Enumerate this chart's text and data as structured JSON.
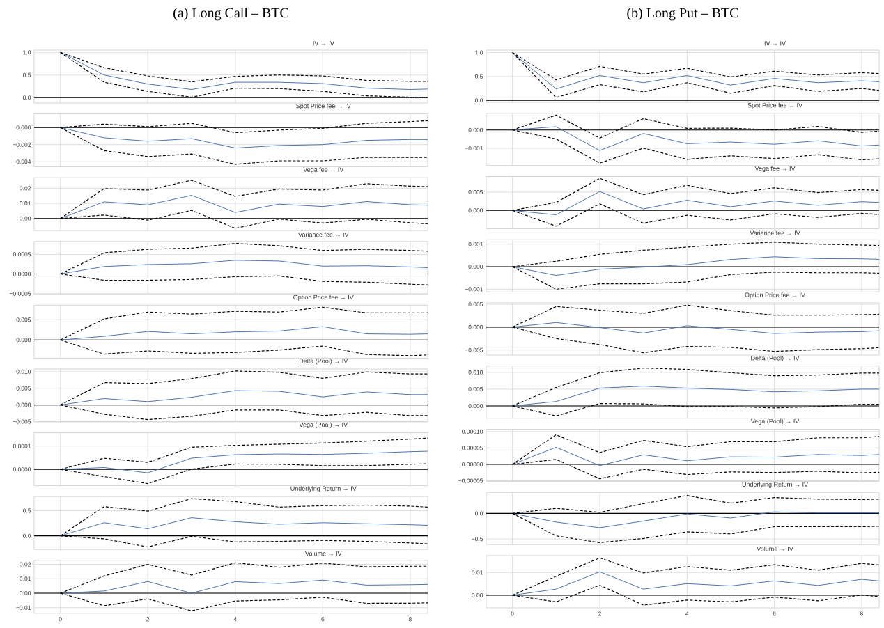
{
  "chart_data": [
    {
      "type": "line",
      "title": "IV → IV",
      "annotations": [
        "(a) Long Call – BTC"
      ],
      "x": [
        0,
        1,
        2,
        3,
        4,
        5,
        6,
        7,
        8,
        8.4
      ],
      "xlim": [
        -0.6,
        8.4
      ],
      "xticks": [
        0,
        2,
        4,
        6,
        8
      ],
      "ylim": [
        -0.12,
        1.05
      ],
      "yticks": [
        {
          "value": 0,
          "label": "0.0"
        },
        {
          "value": 0.5,
          "label": "0.5"
        },
        {
          "value": 1,
          "label": "1.0"
        }
      ],
      "grid": true,
      "tick_labels": "y",
      "ref_lines": [
        {
          "axis": "y",
          "value": 0
        }
      ],
      "series": [
        {
          "color": "#4c72b0",
          "line_style": "solid",
          "values": [
            1.0,
            0.5,
            0.3,
            0.18,
            0.34,
            0.34,
            0.31,
            0.21,
            0.18,
            0.19
          ]
        },
        {
          "color": "#000000",
          "line_style": "dashed",
          "values": [
            1.0,
            0.34,
            0.14,
            0.01,
            0.21,
            0.2,
            0.14,
            0.04,
            0.01,
            0.01
          ]
        },
        {
          "color": "#000000",
          "line_style": "dashed",
          "values": [
            1.0,
            0.66,
            0.48,
            0.35,
            0.47,
            0.5,
            0.48,
            0.38,
            0.36,
            0.36
          ]
        }
      ]
    },
    {
      "type": "line",
      "title": "Spot Price fee → IV",
      "x": [
        0,
        1,
        2,
        3,
        4,
        5,
        6,
        7,
        8,
        8.4
      ],
      "xlim": [
        -0.6,
        8.4
      ],
      "xticks": [
        0,
        2,
        4,
        6,
        8
      ],
      "ylim": [
        -0.0046,
        0.0016
      ],
      "yticks": [
        {
          "value": -0.004,
          "label": "−0.004"
        },
        {
          "value": -0.002,
          "label": "−0.002"
        },
        {
          "value": 0,
          "label": "0.000"
        }
      ],
      "grid": true,
      "tick_labels": "y",
      "ref_lines": [
        {
          "axis": "y",
          "value": 0
        }
      ],
      "series": [
        {
          "color": "#4c72b0",
          "line_style": "solid",
          "values": [
            0,
            -0.0012,
            -0.0016,
            -0.0013,
            -0.0024,
            -0.0021,
            -0.002,
            -0.0015,
            -0.0014,
            -0.0014
          ]
        },
        {
          "color": "#000000",
          "line_style": "dashed",
          "values": [
            0,
            -0.0027,
            -0.0034,
            -0.0031,
            -0.0043,
            -0.0039,
            -0.0039,
            -0.0035,
            -0.0035,
            -0.0035
          ]
        },
        {
          "color": "#000000",
          "line_style": "dashed",
          "values": [
            0,
            0.0004,
            0.0001,
            0.0005,
            -0.0006,
            -0.0003,
            -0.0001,
            0.0005,
            0.0007,
            0.0008
          ]
        }
      ]
    },
    {
      "type": "line",
      "title": "Vega fee → IV",
      "x": [
        0,
        1,
        2,
        3,
        4,
        5,
        6,
        7,
        8,
        8.4
      ],
      "xlim": [
        -0.6,
        8.4
      ],
      "xticks": [
        0,
        2,
        4,
        6,
        8
      ],
      "ylim": [
        -0.008,
        0.027
      ],
      "yticks": [
        {
          "value": 0,
          "label": "0.00"
        },
        {
          "value": 0.01,
          "label": "0.01"
        },
        {
          "value": 0.02,
          "label": "0.02"
        }
      ],
      "grid": true,
      "tick_labels": "y",
      "ref_lines": [
        {
          "axis": "y",
          "value": 0
        }
      ],
      "series": [
        {
          "color": "#4c72b0",
          "line_style": "solid",
          "values": [
            0,
            0.011,
            0.009,
            0.0153,
            0.004,
            0.0095,
            0.0079,
            0.0112,
            0.0091,
            0.0088
          ]
        },
        {
          "color": "#000000",
          "line_style": "dashed",
          "values": [
            0,
            0.0023,
            -0.0011,
            0.0054,
            -0.0065,
            -0.0004,
            -0.003,
            -0.0005,
            -0.0028,
            -0.0035
          ]
        },
        {
          "color": "#000000",
          "line_style": "dashed",
          "values": [
            0,
            0.0198,
            0.0188,
            0.0253,
            0.0146,
            0.0195,
            0.0188,
            0.023,
            0.0214,
            0.021
          ]
        }
      ]
    },
    {
      "type": "line",
      "title": "Variance fee → IV",
      "x": [
        0,
        1,
        2,
        3,
        4,
        5,
        6,
        7,
        8,
        8.4
      ],
      "xlim": [
        -0.6,
        8.4
      ],
      "xticks": [
        0,
        2,
        4,
        6,
        8
      ],
      "ylim": [
        -0.00052,
        0.00083
      ],
      "yticks": [
        {
          "value": -0.0005,
          "label": "−0.0005"
        },
        {
          "value": 0,
          "label": "0.0000"
        },
        {
          "value": 0.0005,
          "label": "0.0005"
        }
      ],
      "grid": true,
      "tick_labels": "y",
      "ref_lines": [
        {
          "axis": "y",
          "value": 0
        }
      ],
      "series": [
        {
          "color": "#4c72b0",
          "line_style": "solid",
          "values": [
            0,
            0.00019,
            0.00024,
            0.00026,
            0.00035,
            0.00033,
            0.0002,
            0.00021,
            0.00018,
            0.00016
          ]
        },
        {
          "color": "#000000",
          "line_style": "dashed",
          "values": [
            0,
            -0.00016,
            -0.00016,
            -0.00014,
            -7e-05,
            -5e-05,
            -0.00019,
            -0.00021,
            -0.00026,
            -0.00028
          ]
        },
        {
          "color": "#000000",
          "line_style": "dashed",
          "values": [
            0,
            0.00054,
            0.00063,
            0.00066,
            0.00078,
            0.00072,
            0.0006,
            0.00063,
            0.0006,
            0.00058
          ]
        }
      ]
    },
    {
      "type": "line",
      "title": "Option Price fee → IV",
      "x": [
        0,
        1,
        2,
        3,
        4,
        5,
        6,
        7,
        8,
        8.4
      ],
      "xlim": [
        -0.6,
        8.4
      ],
      "xticks": [
        0,
        2,
        4,
        6,
        8
      ],
      "ylim": [
        -0.0045,
        0.0086
      ],
      "yticks": [
        {
          "value": 0,
          "label": "0.000"
        },
        {
          "value": 0.005,
          "label": "0.005"
        }
      ],
      "grid": true,
      "tick_labels": "y",
      "ref_lines": [
        {
          "axis": "y",
          "value": 0
        }
      ],
      "series": [
        {
          "color": "#4c72b0",
          "line_style": "solid",
          "values": [
            0,
            0.0009,
            0.0021,
            0.0015,
            0.002,
            0.0022,
            0.0033,
            0.0015,
            0.0014,
            0.0015
          ]
        },
        {
          "color": "#000000",
          "line_style": "dashed",
          "values": [
            0,
            -0.0035,
            -0.0027,
            -0.0033,
            -0.0031,
            -0.0025,
            -0.0015,
            -0.0036,
            -0.0039,
            -0.0037
          ]
        },
        {
          "color": "#000000",
          "line_style": "dashed",
          "values": [
            0,
            0.0052,
            0.0069,
            0.0064,
            0.0071,
            0.0069,
            0.0081,
            0.0067,
            0.0067,
            0.0067
          ]
        }
      ]
    },
    {
      "type": "line",
      "title": "Delta (Pool) → IV",
      "x": [
        0,
        1,
        2,
        3,
        4,
        5,
        6,
        7,
        8,
        8.4
      ],
      "xlim": [
        -0.6,
        8.4
      ],
      "xticks": [
        0,
        2,
        4,
        6,
        8
      ],
      "ylim": [
        -0.0051,
        0.0108
      ],
      "yticks": [
        {
          "value": -0.005,
          "label": "−0.005"
        },
        {
          "value": 0,
          "label": "0.000"
        },
        {
          "value": 0.005,
          "label": "0.005"
        },
        {
          "value": 0.01,
          "label": "0.010"
        }
      ],
      "grid": true,
      "tick_labels": "y",
      "ref_lines": [
        {
          "axis": "y",
          "value": 0
        }
      ],
      "series": [
        {
          "color": "#4c72b0",
          "line_style": "solid",
          "values": [
            0,
            0.0019,
            0.001,
            0.0023,
            0.0043,
            0.0041,
            0.0024,
            0.0039,
            0.0031,
            0.0031
          ]
        },
        {
          "color": "#000000",
          "line_style": "dashed",
          "values": [
            0,
            -0.0028,
            -0.0044,
            -0.0034,
            -0.0015,
            -0.0015,
            -0.0032,
            -0.0022,
            -0.0032,
            -0.0032
          ]
        },
        {
          "color": "#000000",
          "line_style": "dashed",
          "values": [
            0,
            0.0067,
            0.0064,
            0.0079,
            0.0102,
            0.0098,
            0.008,
            0.0099,
            0.0093,
            0.0093
          ]
        }
      ]
    },
    {
      "type": "line",
      "title": "Vega (Pool) → IV",
      "x": [
        0,
        1,
        2,
        3,
        4,
        5,
        6,
        7,
        8,
        8.4
      ],
      "xlim": [
        -0.6,
        8.4
      ],
      "xticks": [
        0,
        2,
        4,
        6,
        8
      ],
      "ylim": [
        -7e-05,
        0.000157
      ],
      "yticks": [
        {
          "value": 0,
          "label": "0.0000"
        },
        {
          "value": 0.0001,
          "label": "0.0001"
        }
      ],
      "grid": true,
      "tick_labels": "y",
      "ref_lines": [
        {
          "axis": "y",
          "value": 0
        }
      ],
      "series": [
        {
          "color": "#4c72b0",
          "line_style": "solid",
          "values": [
            0,
            8e-06,
            -1.5e-05,
            4.8e-05,
            6.3e-05,
            6.6e-05,
            6.4e-05,
            6.9e-05,
            7.6e-05,
            7.8e-05
          ]
        },
        {
          "color": "#000000",
          "line_style": "dashed",
          "values": [
            0,
            -3.1e-05,
            -6.1e-05,
            1e-06,
            2.3e-05,
            2.2e-05,
            1.6e-05,
            1.6e-05,
            2.2e-05,
            2.4e-05
          ]
        },
        {
          "color": "#000000",
          "line_style": "dashed",
          "values": [
            0,
            4.8e-05,
            3e-05,
            9.5e-05,
            0.000103,
            0.000108,
            0.000113,
            0.000121,
            0.00013,
            0.000134
          ]
        }
      ]
    },
    {
      "type": "line",
      "title": "Underlying Return → IV",
      "x": [
        0,
        1,
        2,
        3,
        4,
        5,
        6,
        7,
        8,
        8.4
      ],
      "xlim": [
        -0.6,
        8.4
      ],
      "xticks": [
        0,
        2,
        4,
        6,
        8
      ],
      "ylim": [
        -0.27,
        0.78
      ],
      "yticks": [
        {
          "value": 0,
          "label": "0.0"
        },
        {
          "value": 0.5,
          "label": "0.5"
        }
      ],
      "grid": true,
      "tick_labels": "y",
      "ref_lines": [
        {
          "axis": "y",
          "value": 0
        }
      ],
      "series": [
        {
          "color": "#4c72b0",
          "line_style": "solid",
          "values": [
            0,
            0.26,
            0.14,
            0.36,
            0.28,
            0.23,
            0.26,
            0.24,
            0.22,
            0.21
          ]
        },
        {
          "color": "#000000",
          "line_style": "dashed",
          "values": [
            0,
            -0.06,
            -0.22,
            -0.01,
            -0.12,
            -0.11,
            -0.09,
            -0.11,
            -0.14,
            -0.16
          ]
        },
        {
          "color": "#000000",
          "line_style": "dashed",
          "values": [
            0,
            0.58,
            0.49,
            0.74,
            0.68,
            0.57,
            0.6,
            0.61,
            0.59,
            0.57
          ]
        }
      ]
    },
    {
      "type": "line",
      "title": "Volume → IV",
      "x": [
        0,
        1,
        2,
        3,
        4,
        5,
        6,
        7,
        8,
        8.4
      ],
      "xlim": [
        -0.6,
        8.4
      ],
      "xticks": [
        0,
        2,
        4,
        6,
        8
      ],
      "ylim": [
        -0.0139,
        0.0228
      ],
      "yticks": [
        {
          "value": -0.01,
          "label": "−0.01"
        },
        {
          "value": 0,
          "label": "0.00"
        },
        {
          "value": 0.01,
          "label": "0.01"
        },
        {
          "value": 0.02,
          "label": "0.02"
        }
      ],
      "grid": true,
      "ref_lines": [
        {
          "axis": "y",
          "value": 0
        }
      ],
      "series": [
        {
          "color": "#4c72b0",
          "line_style": "solid",
          "values": [
            0,
            0.0015,
            0.0081,
            0.0,
            0.008,
            0.0067,
            0.0091,
            0.0056,
            0.0059,
            0.0061
          ]
        },
        {
          "color": "#000000",
          "line_style": "dashed",
          "values": [
            0,
            -0.0087,
            -0.0039,
            -0.0122,
            -0.0054,
            -0.0046,
            -0.0028,
            -0.007,
            -0.0069,
            -0.0067
          ]
        },
        {
          "color": "#000000",
          "line_style": "dashed",
          "values": [
            0,
            0.012,
            0.02,
            0.0126,
            0.0211,
            0.018,
            0.0209,
            0.0183,
            0.0187,
            0.0187
          ]
        }
      ]
    },
    {
      "type": "line",
      "title": "IV → IV",
      "annotations": [
        "(b) Long Put – BTC"
      ],
      "x": [
        0,
        1,
        2,
        3,
        4,
        5,
        6,
        7,
        8,
        8.4
      ],
      "xlim": [
        -0.6,
        8.4
      ],
      "xticks": [
        0,
        2,
        4,
        6,
        8
      ],
      "ylim": [
        -0.04,
        1.05
      ],
      "yticks": [
        {
          "value": 0,
          "label": "0.0"
        },
        {
          "value": 0.5,
          "label": "0.5"
        },
        {
          "value": 1,
          "label": "1.0"
        }
      ],
      "grid": true,
      "tick_labels": "y",
      "ref_lines": [
        {
          "axis": "y",
          "value": 0
        }
      ],
      "series": [
        {
          "color": "#4c72b0",
          "line_style": "solid",
          "values": [
            1.0,
            0.24,
            0.52,
            0.37,
            0.52,
            0.32,
            0.46,
            0.37,
            0.41,
            0.39
          ]
        },
        {
          "color": "#000000",
          "line_style": "dashed",
          "values": [
            1.0,
            0.06,
            0.33,
            0.18,
            0.37,
            0.15,
            0.31,
            0.19,
            0.25,
            0.21
          ]
        },
        {
          "color": "#000000",
          "line_style": "dashed",
          "values": [
            1.0,
            0.43,
            0.71,
            0.55,
            0.67,
            0.49,
            0.61,
            0.53,
            0.58,
            0.56
          ]
        }
      ]
    },
    {
      "type": "line",
      "title": "Spot Price fee → IV",
      "x": [
        0,
        1,
        2,
        3,
        4,
        5,
        6,
        7,
        8,
        8.4
      ],
      "xlim": [
        -0.6,
        8.4
      ],
      "xticks": [
        0,
        2,
        4,
        6,
        8
      ],
      "ylim": [
        -0.00194,
        0.00091
      ],
      "yticks": [
        {
          "value": -0.001,
          "label": "−0.001"
        },
        {
          "value": 0,
          "label": "0.000"
        }
      ],
      "grid": true,
      "tick_labels": "y",
      "ref_lines": [
        {
          "axis": "y",
          "value": 0
        }
      ],
      "series": [
        {
          "color": "#4c72b0",
          "line_style": "solid",
          "values": [
            0,
            0.00018,
            -0.00112,
            -0.00019,
            -0.00075,
            -0.00066,
            -0.00078,
            -0.00059,
            -0.00087,
            -0.00082
          ]
        },
        {
          "color": "#000000",
          "line_style": "dashed",
          "values": [
            0,
            -0.00049,
            -0.00181,
            -0.00099,
            -0.0016,
            -0.00141,
            -0.00156,
            -0.00135,
            -0.00163,
            -0.00157
          ]
        },
        {
          "color": "#000000",
          "line_style": "dashed",
          "values": [
            0,
            0.00081,
            -0.00044,
            0.00062,
            9e-05,
            0.0001,
            0,
            0.00019,
            -0.00013,
            -7e-05
          ]
        }
      ]
    },
    {
      "type": "line",
      "title": "Vega fee → IV",
      "x": [
        0,
        1,
        2,
        3,
        4,
        5,
        6,
        7,
        8,
        8.4
      ],
      "xlim": [
        -0.6,
        8.4
      ],
      "xticks": [
        0,
        2,
        4,
        6,
        8
      ],
      "ylim": [
        -0.005,
        0.0093
      ],
      "yticks": [
        {
          "value": 0,
          "label": "0.000"
        },
        {
          "value": 0.005,
          "label": "0.005"
        }
      ],
      "grid": true,
      "tick_labels": "y",
      "ref_lines": [
        {
          "axis": "y",
          "value": 0
        }
      ],
      "series": [
        {
          "color": "#4c72b0",
          "line_style": "solid",
          "values": [
            0,
            -0.0012,
            0.0052,
            0.0004,
            0.0028,
            0.001,
            0.0026,
            0.0014,
            0.0024,
            0.0022
          ]
        },
        {
          "color": "#000000",
          "line_style": "dashed",
          "values": [
            0,
            -0.0043,
            0.0018,
            -0.0035,
            -0.0013,
            -0.0026,
            -0.0009,
            -0.0019,
            -0.0008,
            -0.0011
          ]
        },
        {
          "color": "#000000",
          "line_style": "dashed",
          "values": [
            0,
            0.0022,
            0.0088,
            0.0043,
            0.0069,
            0.0046,
            0.0062,
            0.0049,
            0.0057,
            0.0055
          ]
        }
      ]
    },
    {
      "type": "line",
      "title": "Variance fee → IV",
      "x": [
        0,
        1,
        2,
        3,
        4,
        5,
        6,
        7,
        8,
        8.4
      ],
      "xlim": [
        -0.6,
        8.4
      ],
      "xticks": [
        0,
        2,
        4,
        6,
        8
      ],
      "ylim": [
        -0.00112,
        0.0012
      ],
      "yticks": [
        {
          "value": -0.001,
          "label": "−0.001"
        },
        {
          "value": 0,
          "label": "0.000"
        },
        {
          "value": 0.001,
          "label": "0.001"
        }
      ],
      "grid": true,
      "tick_labels": "y",
      "ref_lines": [
        {
          "axis": "y",
          "value": 0
        }
      ],
      "series": [
        {
          "color": "#4c72b0",
          "line_style": "solid",
          "values": [
            0,
            -0.00039,
            -0.00011,
            -2e-05,
            9e-05,
            0.00032,
            0.00044,
            0.00036,
            0.00035,
            0.00033
          ]
        },
        {
          "color": "#000000",
          "line_style": "dashed",
          "values": [
            0,
            -0.001,
            -0.00076,
            -0.00076,
            -0.00068,
            -0.00035,
            -0.00024,
            -0.00027,
            -0.00027,
            -0.00029
          ]
        },
        {
          "color": "#000000",
          "line_style": "dashed",
          "values": [
            0,
            0.00024,
            0.00055,
            0.00073,
            0.00087,
            0.001,
            0.00109,
            0.001,
            0.00096,
            0.00094
          ]
        }
      ]
    },
    {
      "type": "line",
      "title": "Option Price fee → IV",
      "x": [
        0,
        1,
        2,
        3,
        4,
        5,
        6,
        7,
        8,
        8.4
      ],
      "xlim": [
        -0.6,
        8.4
      ],
      "xticks": [
        0,
        2,
        4,
        6,
        8
      ],
      "ylim": [
        -0.0061,
        0.0053
      ],
      "yticks": [
        {
          "value": -0.005,
          "label": "−0.005"
        },
        {
          "value": 0,
          "label": "0.000"
        },
        {
          "value": 0.005,
          "label": "0.005"
        }
      ],
      "grid": true,
      "tick_labels": "y",
      "ref_lines": [
        {
          "axis": "y",
          "value": 0
        }
      ],
      "series": [
        {
          "color": "#4c72b0",
          "line_style": "solid",
          "values": [
            0,
            0.001,
            -0.0001,
            -0.0013,
            0.0003,
            -0.0005,
            -0.0014,
            -0.0011,
            -0.001,
            -0.0008
          ]
        },
        {
          "color": "#000000",
          "line_style": "dashed",
          "values": [
            0,
            -0.0025,
            -0.0038,
            -0.0056,
            -0.0042,
            -0.0044,
            -0.0053,
            -0.0049,
            -0.0047,
            -0.0045
          ]
        },
        {
          "color": "#000000",
          "line_style": "dashed",
          "values": [
            0,
            0.0045,
            0.0037,
            0.003,
            0.0048,
            0.0036,
            0.0026,
            0.0026,
            0.0027,
            0.0028
          ]
        }
      ]
    },
    {
      "type": "line",
      "title": "Delta (Pool) → IV",
      "x": [
        0,
        1,
        2,
        3,
        4,
        5,
        6,
        7,
        8,
        8.4
      ],
      "xlim": [
        -0.6,
        8.4
      ],
      "xticks": [
        0,
        2,
        4,
        6,
        8
      ],
      "ylim": [
        -0.0037,
        0.0119
      ],
      "yticks": [
        {
          "value": 0,
          "label": "0.000"
        },
        {
          "value": 0.005,
          "label": "0.005"
        },
        {
          "value": 0.01,
          "label": "0.010"
        }
      ],
      "grid": true,
      "tick_labels": "y",
      "ref_lines": [
        {
          "axis": "y",
          "value": 0
        }
      ],
      "series": [
        {
          "color": "#4c72b0",
          "line_style": "solid",
          "values": [
            0,
            0.0013,
            0.0053,
            0.0059,
            0.0053,
            0.0049,
            0.0042,
            0.0045,
            0.005,
            0.005
          ]
        },
        {
          "color": "#000000",
          "line_style": "dashed",
          "values": [
            0,
            -0.003,
            0.0007,
            0.0006,
            -0.0002,
            -0.0002,
            -0.0006,
            -0.0002,
            0.0005,
            0.0005
          ]
        },
        {
          "color": "#000000",
          "line_style": "dashed",
          "values": [
            0,
            0.0055,
            0.0099,
            0.0113,
            0.0109,
            0.0099,
            0.009,
            0.0092,
            0.0098,
            0.0098
          ]
        }
      ]
    },
    {
      "type": "line",
      "title": "Vega (Pool) → IV",
      "x": [
        0,
        1,
        2,
        3,
        4,
        5,
        6,
        7,
        8,
        8.4
      ],
      "xlim": [
        -0.6,
        8.4
      ],
      "xticks": [
        0,
        2,
        4,
        6,
        8
      ],
      "ylim": [
        -5.2e-05,
        0.000107
      ],
      "yticks": [
        {
          "value": -5e-05,
          "label": "−0.00005"
        },
        {
          "value": 0,
          "label": "0.00000"
        },
        {
          "value": 5e-05,
          "label": "0.00005"
        },
        {
          "value": 0.0001,
          "label": "0.00010"
        }
      ],
      "grid": true,
      "tick_labels": "y",
      "ref_lines": [
        {
          "axis": "y",
          "value": 0
        }
      ],
      "series": [
        {
          "color": "#4c72b0",
          "line_style": "solid",
          "values": [
            0,
            5.2e-05,
            -4e-06,
            2.9e-05,
            1.1e-05,
            2.3e-05,
            2.2e-05,
            3e-05,
            2.7e-05,
            3e-05
          ]
        },
        {
          "color": "#000000",
          "line_style": "dashed",
          "values": [
            0,
            1.5e-05,
            -4.4e-05,
            -1.5e-05,
            -3.1e-05,
            -2.3e-05,
            -2.5e-05,
            -2.1e-05,
            -2.6e-05,
            -2.4e-05
          ]
        },
        {
          "color": "#000000",
          "line_style": "dashed",
          "values": [
            0,
            9e-05,
            3.6e-05,
            7.3e-05,
            5.4e-05,
            6.9e-05,
            6.9e-05,
            8.1e-05,
            8.1e-05,
            8.5e-05
          ]
        }
      ]
    },
    {
      "type": "line",
      "title": "Underlying Return → IV",
      "x": [
        0,
        1,
        2,
        3,
        4,
        5,
        6,
        7,
        8,
        8.4
      ],
      "xlim": [
        -0.6,
        8.4
      ],
      "xticks": [
        0,
        2,
        4,
        6,
        8
      ],
      "ylim": [
        -0.61,
        0.41
      ],
      "yticks": [
        {
          "value": -0.5,
          "label": "−0.5"
        },
        {
          "value": 0,
          "label": "0.0"
        }
      ],
      "grid": true,
      "tick_labels": "y",
      "ref_lines": [
        {
          "axis": "y",
          "value": 0
        }
      ],
      "series": [
        {
          "color": "#4c72b0",
          "line_style": "solid",
          "values": [
            0,
            -0.17,
            -0.28,
            -0.15,
            -0.01,
            -0.09,
            0.03,
            0.01,
            0.01,
            0.01
          ]
        },
        {
          "color": "#000000",
          "line_style": "dashed",
          "values": [
            0,
            -0.44,
            -0.57,
            -0.49,
            -0.36,
            -0.4,
            -0.26,
            -0.26,
            -0.26,
            -0.25
          ]
        },
        {
          "color": "#000000",
          "line_style": "dashed",
          "values": [
            0,
            0.1,
            0.02,
            0.19,
            0.35,
            0.2,
            0.31,
            0.28,
            0.27,
            0.28
          ]
        }
      ]
    },
    {
      "type": "line",
      "title": "Volume → IV",
      "x": [
        0,
        1,
        2,
        3,
        4,
        5,
        6,
        7,
        8,
        8.4
      ],
      "xlim": [
        -0.6,
        8.4
      ],
      "xticks": [
        0,
        2,
        4,
        6,
        8
      ],
      "ylim": [
        -0.0055,
        0.0174
      ],
      "yticks": [
        {
          "value": 0,
          "label": "0.00"
        },
        {
          "value": 0.01,
          "label": "0.01"
        }
      ],
      "grid": true,
      "ref_lines": [
        {
          "axis": "y",
          "value": 0
        }
      ],
      "series": [
        {
          "color": "#4c72b0",
          "line_style": "solid",
          "values": [
            0,
            0.0027,
            0.0103,
            0.0027,
            0.0051,
            0.0041,
            0.0063,
            0.0043,
            0.007,
            0.0063
          ]
        },
        {
          "color": "#000000",
          "line_style": "dashed",
          "values": [
            0,
            -0.0029,
            0.0044,
            -0.0043,
            -0.0021,
            -0.0029,
            -0.0008,
            -0.0024,
            0.0001,
            -0.0006
          ]
        },
        {
          "color": "#000000",
          "line_style": "dashed",
          "values": [
            0,
            0.0083,
            0.0164,
            0.0098,
            0.0126,
            0.011,
            0.0134,
            0.011,
            0.014,
            0.0133
          ]
        }
      ]
    }
  ]
}
